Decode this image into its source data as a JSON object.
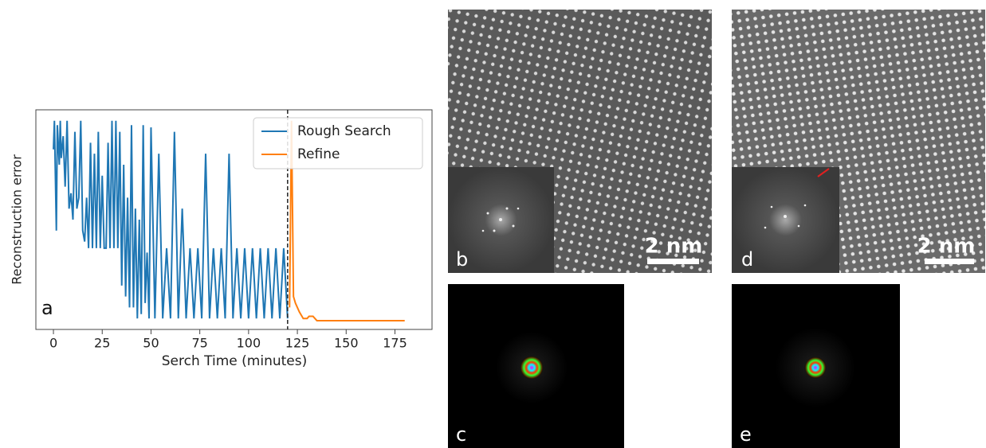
{
  "chart_data": {
    "type": "line",
    "panel_label": "a",
    "xlabel": "Serch Time (minutes)",
    "ylabel": "Reconstruction error",
    "xlim": [
      -9,
      194
    ],
    "ylim": [
      0,
      1
    ],
    "xticks": [
      0,
      25,
      50,
      75,
      100,
      125,
      150,
      175
    ],
    "legend": "upper right",
    "vline": 120,
    "series": [
      {
        "name": "Rough Search",
        "color": "#1f77b4",
        "x": [
          0,
          0.5,
          1,
          1.5,
          2,
          3,
          3.5,
          4,
          5,
          6,
          7,
          8,
          9,
          10,
          11,
          12,
          13,
          14,
          15,
          16,
          17,
          18,
          19,
          20,
          21,
          22,
          23,
          24,
          25,
          26,
          27,
          28,
          29,
          30,
          31,
          32,
          33,
          34,
          35,
          36,
          37,
          38,
          39,
          40,
          41,
          42,
          43,
          44,
          45,
          46,
          47,
          48,
          49,
          50,
          52,
          54,
          56,
          58,
          60,
          62,
          64,
          66,
          68,
          70,
          72,
          74,
          76,
          78,
          80,
          82,
          84,
          86,
          88,
          90,
          92,
          94,
          96,
          98,
          100,
          102,
          104,
          106,
          108,
          110,
          112,
          114,
          116,
          118,
          120
        ],
        "values": [
          0.82,
          0.95,
          0.7,
          0.45,
          0.93,
          0.75,
          0.95,
          0.78,
          0.88,
          0.65,
          0.95,
          0.55,
          0.62,
          0.5,
          0.9,
          0.55,
          0.6,
          0.95,
          0.45,
          0.4,
          0.6,
          0.37,
          0.85,
          0.37,
          0.8,
          0.37,
          0.9,
          0.37,
          0.7,
          0.37,
          0.37,
          0.85,
          0.37,
          0.95,
          0.37,
          0.95,
          0.37,
          0.9,
          0.2,
          0.75,
          0.15,
          0.6,
          0.1,
          0.93,
          0.1,
          0.55,
          0.05,
          0.5,
          0.07,
          0.93,
          0.12,
          0.35,
          0.05,
          0.92,
          0.05,
          0.8,
          0.05,
          0.37,
          0.05,
          0.9,
          0.05,
          0.55,
          0.05,
          0.37,
          0.05,
          0.37,
          0.05,
          0.8,
          0.05,
          0.37,
          0.05,
          0.37,
          0.05,
          0.8,
          0.05,
          0.37,
          0.05,
          0.37,
          0.05,
          0.37,
          0.05,
          0.37,
          0.05,
          0.37,
          0.05,
          0.37,
          0.05,
          0.37,
          0.05
        ]
      },
      {
        "name": "Refine",
        "color": "#ff7f0e",
        "x": [
          121,
          122,
          123,
          124,
          126,
          128,
          130,
          131,
          133,
          135,
          150,
          180
        ],
        "values": [
          0.1,
          0.95,
          0.15,
          0.12,
          0.08,
          0.05,
          0.05,
          0.06,
          0.06,
          0.04,
          0.04,
          0.04
        ]
      }
    ]
  },
  "panels": [
    {
      "label": "b",
      "scale_bar": "2 nm"
    },
    {
      "label": "c"
    },
    {
      "label": "d",
      "scale_bar": "2 nm"
    },
    {
      "label": "e"
    }
  ]
}
